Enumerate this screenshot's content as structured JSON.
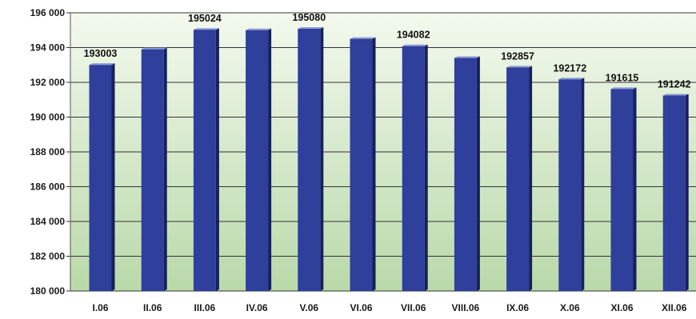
{
  "chart_data": {
    "type": "bar",
    "categories": [
      "I.06",
      "II.06",
      "III.06",
      "IV.06",
      "V.06",
      "VI.06",
      "VII.06",
      "VIII.06",
      "IX.06",
      "X.06",
      "XI.06",
      "XII.06"
    ],
    "values": [
      193003,
      193900,
      195024,
      195000,
      195080,
      194500,
      194082,
      193400,
      192857,
      192172,
      191615,
      191242
    ],
    "data_labels": [
      "193003",
      "",
      "195024",
      "",
      "195080",
      "",
      "194082",
      "",
      "192857",
      "192172",
      "191615",
      "191242"
    ],
    "yticks": [
      180000,
      182000,
      184000,
      186000,
      188000,
      190000,
      192000,
      194000,
      196000
    ],
    "ytick_labels": [
      "180 000",
      "182 000",
      "184 000",
      "186 000",
      "188 000",
      "190 000",
      "192 000",
      "194 000",
      "196 000"
    ],
    "ylim": [
      180000,
      196000
    ],
    "grid": true,
    "legend": false,
    "colors": {
      "bar": "#2e3f9c",
      "bar_side": "#16205c",
      "bar_top": "#8f9ad6",
      "plot_bg_top": "#f3f9ee",
      "plot_bg_bottom": "#b9d9a9",
      "gridline": "#333333"
    }
  }
}
